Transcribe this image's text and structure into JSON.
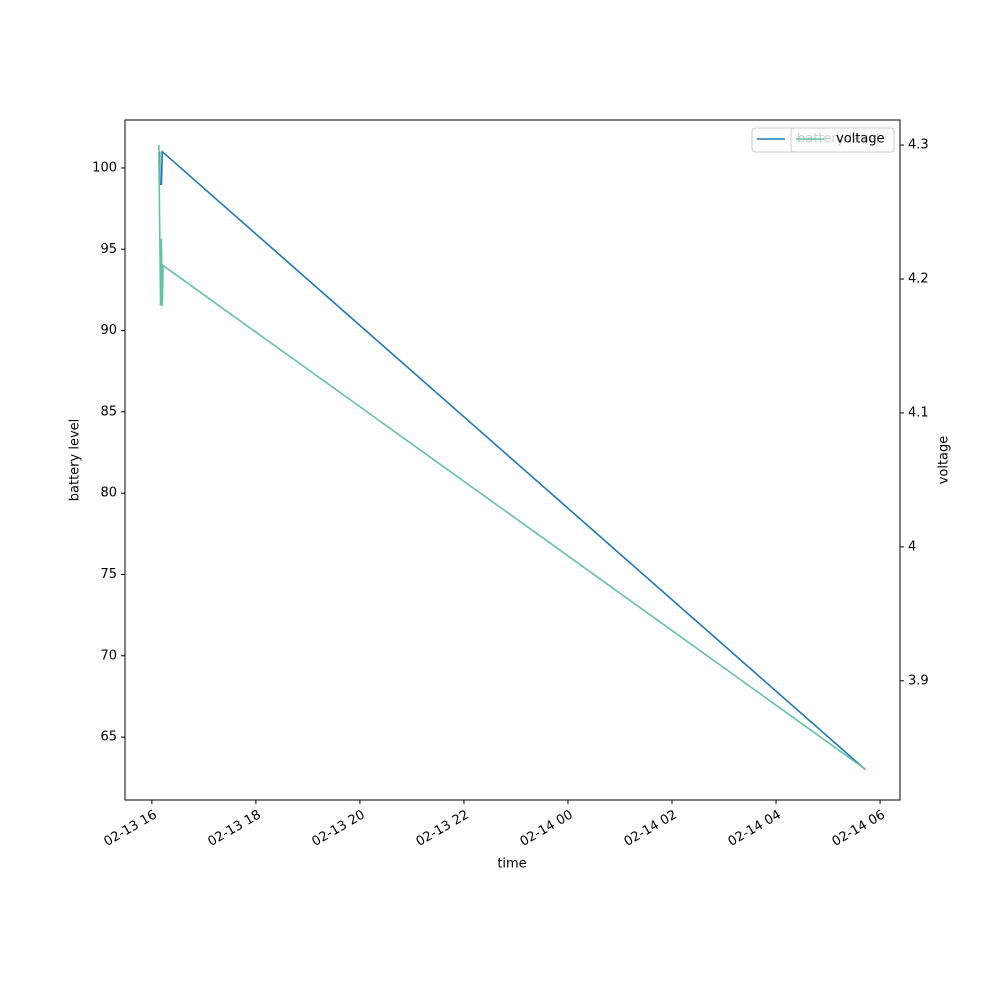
{
  "chart_data": {
    "type": "line",
    "xlabel": "time",
    "ylabel": "battery level",
    "y2label": "voltage",
    "xlim": [
      "02-13 15:29",
      "02-14 06:23"
    ],
    "xticks": [
      {
        "value": "02-13 16:00",
        "label": "02-13 16"
      },
      {
        "value": "02-13 18:00",
        "label": "02-13 18"
      },
      {
        "value": "02-13 20:00",
        "label": "02-13 20"
      },
      {
        "value": "02-13 22:00",
        "label": "02-13 22"
      },
      {
        "value": "02-14 00:00",
        "label": "02-14 00"
      },
      {
        "value": "02-14 02:00",
        "label": "02-14 02"
      },
      {
        "value": "02-14 04:00",
        "label": "02-14 04"
      },
      {
        "value": "02-14 06:00",
        "label": "02-14 06"
      }
    ],
    "ylim": [
      61.13,
      102.95
    ],
    "yticks": [
      65,
      70,
      75,
      80,
      85,
      90,
      95,
      100
    ],
    "y2lim": [
      3.811,
      4.3187
    ],
    "y2ticks": [
      3.9,
      4.0,
      4.1,
      4.2,
      4.3
    ],
    "legend": "upper right",
    "series": [
      {
        "name": "battery level",
        "color": "#1f77b4",
        "x": [
          "02-13 16:09",
          "02-13 16:09",
          "02-13 16:11",
          "02-13 16:12",
          "02-14 05:43"
        ],
        "values": [
          101,
          99,
          99,
          101,
          63
        ]
      },
      {
        "name": "voltage",
        "color": "#66c2a5",
        "axis": "y2",
        "x": [
          "02-13 16:08",
          "02-13 16:10",
          "02-13 16:11",
          "02-13 16:12",
          "02-13 16:13",
          "02-14 05:43"
        ],
        "values": [
          4.3,
          4.18,
          4.23,
          4.18,
          4.21,
          3.834
        ]
      }
    ]
  }
}
